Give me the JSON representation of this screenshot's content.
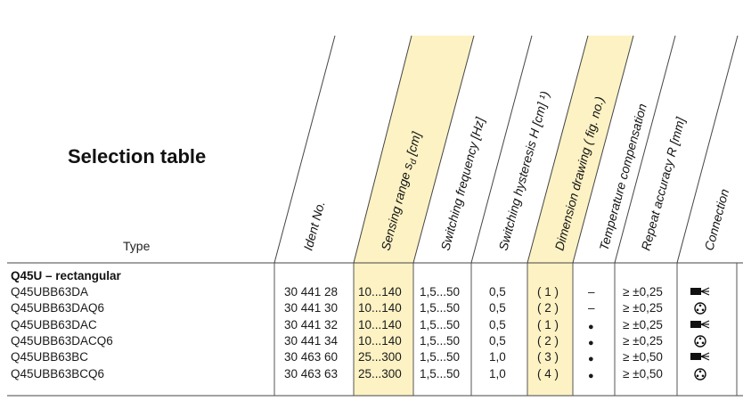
{
  "title": "Selection table",
  "type_label": "Type",
  "headers": {
    "ident": "Ident No.",
    "range_prefix": "Sensing range s",
    "range_sub": "d",
    "range_suffix": " [cm]",
    "frequency": "Switching frequency [Hz]",
    "hysteresis": "Switching hysteresis  H [cm] ¹)",
    "dimension": "Dimension drawing  ( fig. no.)",
    "temperature": "Temperature  compensation",
    "repeat": "Repeat accuracy R [mm]",
    "connection": "Connection"
  },
  "group": "Q45U –  rectangular",
  "rows": [
    {
      "type": "Q45UBB63DA",
      "ident": "30 441 28",
      "range": "10...140",
      "freq": "1,5...50",
      "hyst": "0,5",
      "dim": "( 1 )",
      "temp": "–",
      "repeat": "≥ ±0,25",
      "conn": "cable"
    },
    {
      "type": "Q45UBB63DAQ6",
      "ident": "30 441 30",
      "range": "10...140",
      "freq": "1,5...50",
      "hyst": "0,5",
      "dim": "( 2 )",
      "temp": "–",
      "repeat": "≥ ±0,25",
      "conn": "connector"
    },
    {
      "type": "Q45UBB63DAC",
      "ident": "30 441 32",
      "range": "10...140",
      "freq": "1,5...50",
      "hyst": "0,5",
      "dim": "( 1 )",
      "temp": "●",
      "repeat": "≥ ±0,25",
      "conn": "cable"
    },
    {
      "type": "Q45UBB63DACQ6",
      "ident": "30 441 34",
      "range": "10...140",
      "freq": "1,5...50",
      "hyst": "0,5",
      "dim": "( 2 )",
      "temp": "●",
      "repeat": "≥ ±0,25",
      "conn": "connector"
    },
    {
      "type": "Q45UBB63BC",
      "ident": "30 463 60",
      "range": "25...300",
      "freq": "1,5...50",
      "hyst": "1,0",
      "dim": "( 3 )",
      "temp": "●",
      "repeat": "≥ ±0,50",
      "conn": "cable"
    },
    {
      "type": "Q45UBB63BCQ6",
      "ident": "30 463 63",
      "range": "25...300",
      "freq": "1,5...50",
      "hyst": "1,0",
      "dim": "( 4 )",
      "temp": "●",
      "repeat": "≥ ±0,50",
      "conn": "connector"
    }
  ],
  "colors": {
    "highlight": "#fdf2c4",
    "line": "#444444"
  }
}
